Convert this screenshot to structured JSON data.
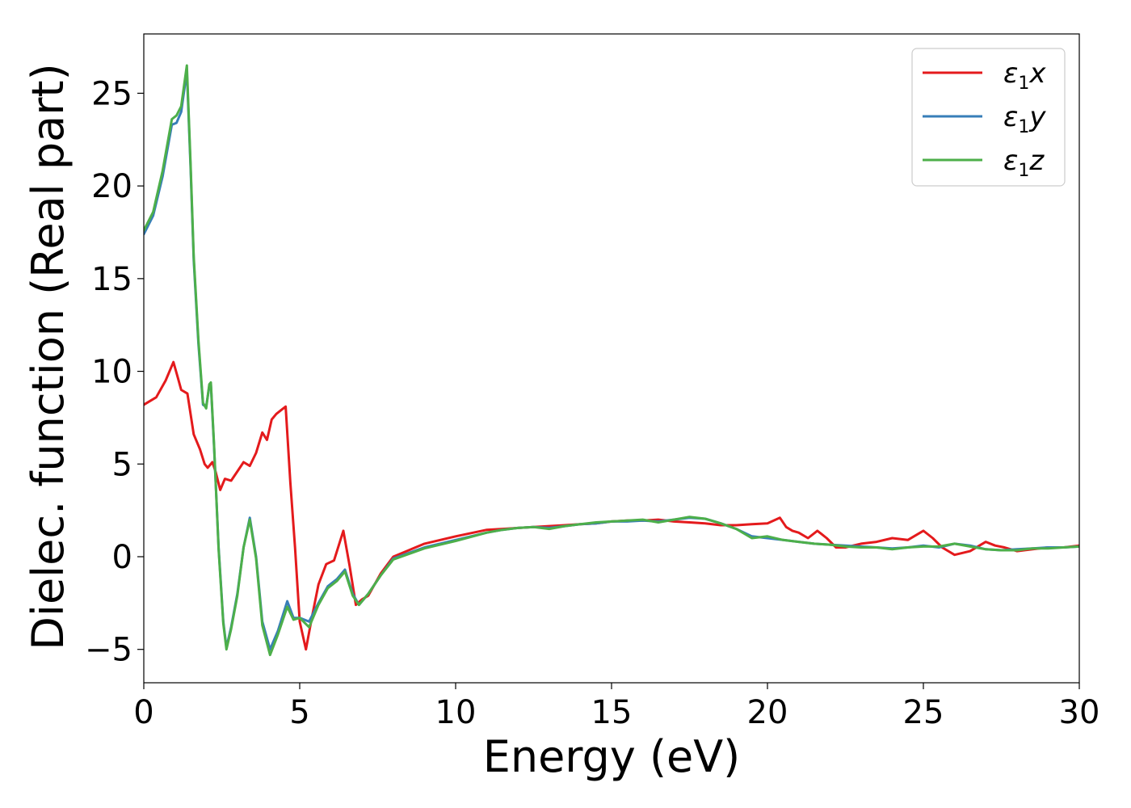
{
  "chart_data": {
    "type": "line",
    "xlabel": "Energy (eV)",
    "ylabel": "Dielec. function (Real part)",
    "xlim": [
      0,
      30
    ],
    "ylim": [
      -6.8,
      28.2
    ],
    "xticks": [
      0,
      5,
      10,
      15,
      20,
      25,
      30
    ],
    "yticks": [
      -5,
      0,
      5,
      10,
      15,
      20,
      25
    ],
    "xtick_labels": [
      "0",
      "5",
      "10",
      "15",
      "20",
      "25",
      "30"
    ],
    "ytick_labels": [
      "−5",
      "0",
      "5",
      "10",
      "15",
      "20",
      "25"
    ],
    "grid": false,
    "legend_position": "top-right",
    "series": [
      {
        "name": "ε1x",
        "symbol": "ε",
        "sub": "1",
        "axis": "x",
        "color": "#e41a1c",
        "x": [
          0,
          0.4,
          0.7,
          0.95,
          1.1,
          1.2,
          1.4,
          1.6,
          1.8,
          1.95,
          2.05,
          2.2,
          2.3,
          2.45,
          2.6,
          2.8,
          3.0,
          3.2,
          3.4,
          3.6,
          3.8,
          3.95,
          4.1,
          4.25,
          4.4,
          4.55,
          4.7,
          4.85,
          5.0,
          5.2,
          5.4,
          5.6,
          5.85,
          6.1,
          6.4,
          6.6,
          6.8,
          7.0,
          7.2,
          7.6,
          8.0,
          9.0,
          10.0,
          11.0,
          11.5,
          12.0,
          12.5,
          13.0,
          13.5,
          14.0,
          14.5,
          15.0,
          15.5,
          16.0,
          16.5,
          17.0,
          17.5,
          18.0,
          18.5,
          19.0,
          19.5,
          20.0,
          20.4,
          20.6,
          20.8,
          21.0,
          21.3,
          21.6,
          21.9,
          22.2,
          22.5,
          23.0,
          23.5,
          24.0,
          24.5,
          25.0,
          25.3,
          25.6,
          26.0,
          26.5,
          27.0,
          27.3,
          27.6,
          28.0,
          28.5,
          29.0,
          29.5,
          30.0
        ],
        "y": [
          8.2,
          8.6,
          9.5,
          10.5,
          9.6,
          9.0,
          8.8,
          6.6,
          5.8,
          5.0,
          4.8,
          5.1,
          4.6,
          3.6,
          4.2,
          4.1,
          4.6,
          5.1,
          4.9,
          5.6,
          6.7,
          6.3,
          7.4,
          7.7,
          7.9,
          8.1,
          4.0,
          0.5,
          -3.5,
          -5.0,
          -3.2,
          -1.5,
          -0.4,
          -0.2,
          1.4,
          -0.5,
          -2.6,
          -2.3,
          -2.1,
          -0.9,
          0.0,
          0.7,
          1.1,
          1.45,
          1.5,
          1.55,
          1.6,
          1.65,
          1.7,
          1.75,
          1.8,
          1.9,
          1.95,
          1.95,
          2.0,
          1.9,
          1.85,
          1.8,
          1.7,
          1.7,
          1.75,
          1.8,
          2.1,
          1.6,
          1.4,
          1.3,
          1.0,
          1.4,
          1.0,
          0.5,
          0.5,
          0.7,
          0.8,
          1.0,
          0.9,
          1.4,
          1.0,
          0.5,
          0.1,
          0.3,
          0.8,
          0.6,
          0.5,
          0.3,
          0.4,
          0.5,
          0.5,
          0.6
        ]
      },
      {
        "name": "ε1y",
        "symbol": "ε",
        "sub": "1",
        "axis": "y",
        "color": "#377eb8",
        "x": [
          0,
          0.3,
          0.6,
          0.9,
          1.05,
          1.2,
          1.38,
          1.5,
          1.6,
          1.75,
          1.9,
          2.0,
          2.1,
          2.15,
          2.25,
          2.4,
          2.55,
          2.65,
          2.8,
          3.0,
          3.2,
          3.4,
          3.6,
          3.8,
          4.05,
          4.3,
          4.6,
          4.8,
          5.0,
          5.3,
          5.6,
          5.9,
          6.2,
          6.45,
          6.7,
          6.9,
          7.2,
          7.6,
          8.0,
          9.0,
          10.0,
          11.0,
          11.5,
          12.0,
          12.5,
          13.0,
          13.5,
          14.0,
          14.5,
          15.0,
          15.5,
          16.0,
          16.5,
          17.0,
          17.5,
          18.0,
          18.5,
          19.0,
          19.5,
          20.0,
          20.5,
          21.0,
          21.5,
          22.0,
          22.5,
          23.0,
          23.5,
          24.0,
          24.5,
          25.0,
          25.5,
          26.0,
          26.5,
          27.0,
          27.5,
          28.0,
          28.5,
          29.0,
          29.5,
          30.0
        ],
        "y": [
          17.4,
          18.4,
          20.5,
          23.3,
          23.4,
          24.0,
          26.2,
          21.0,
          16.0,
          11.5,
          8.2,
          8.1,
          9.2,
          9.3,
          6.0,
          0.5,
          -3.5,
          -4.9,
          -3.8,
          -2.0,
          0.5,
          2.1,
          0.0,
          -3.5,
          -5.0,
          -4.0,
          -2.4,
          -3.3,
          -3.3,
          -3.5,
          -2.5,
          -1.6,
          -1.2,
          -0.7,
          -2.0,
          -2.6,
          -2.0,
          -1.0,
          -0.1,
          0.5,
          0.9,
          1.3,
          1.45,
          1.55,
          1.6,
          1.55,
          1.65,
          1.75,
          1.8,
          1.9,
          1.9,
          1.95,
          1.9,
          2.0,
          2.1,
          2.05,
          1.8,
          1.5,
          1.1,
          1.0,
          0.9,
          0.8,
          0.7,
          0.65,
          0.6,
          0.55,
          0.5,
          0.45,
          0.5,
          0.6,
          0.5,
          0.7,
          0.6,
          0.4,
          0.35,
          0.4,
          0.45,
          0.5,
          0.5,
          0.55
        ]
      },
      {
        "name": "ε1z",
        "symbol": "ε",
        "sub": "1",
        "axis": "z",
        "color": "#4daf4a",
        "x": [
          0,
          0.3,
          0.6,
          0.9,
          1.05,
          1.2,
          1.38,
          1.5,
          1.6,
          1.75,
          1.9,
          2.0,
          2.1,
          2.15,
          2.25,
          2.4,
          2.55,
          2.65,
          2.8,
          3.0,
          3.2,
          3.4,
          3.6,
          3.8,
          4.05,
          4.3,
          4.6,
          4.8,
          5.0,
          5.3,
          5.6,
          5.9,
          6.2,
          6.45,
          6.7,
          6.9,
          7.2,
          7.6,
          8.0,
          9.0,
          10.0,
          11.0,
          11.5,
          12.0,
          12.5,
          13.0,
          13.5,
          14.0,
          14.5,
          15.0,
          15.5,
          16.0,
          16.5,
          17.0,
          17.5,
          18.0,
          18.5,
          19.0,
          19.5,
          20.0,
          20.5,
          21.0,
          21.5,
          22.0,
          22.5,
          23.0,
          23.5,
          24.0,
          24.5,
          25.0,
          25.5,
          26.0,
          26.5,
          27.0,
          27.5,
          28.0,
          28.5,
          29.0,
          29.5,
          30.0
        ],
        "y": [
          17.6,
          18.6,
          20.8,
          23.6,
          23.8,
          24.3,
          26.5,
          21.2,
          16.2,
          11.7,
          8.3,
          8.0,
          9.3,
          9.4,
          6.1,
          0.4,
          -3.6,
          -5.0,
          -3.9,
          -2.1,
          0.5,
          2.0,
          -0.1,
          -3.7,
          -5.3,
          -4.2,
          -2.7,
          -3.4,
          -3.3,
          -3.8,
          -2.6,
          -1.7,
          -1.3,
          -0.8,
          -2.1,
          -2.6,
          -2.0,
          -1.0,
          -0.15,
          0.45,
          0.85,
          1.3,
          1.45,
          1.55,
          1.6,
          1.5,
          1.65,
          1.75,
          1.85,
          1.9,
          1.95,
          2.0,
          1.85,
          2.0,
          2.15,
          2.05,
          1.8,
          1.5,
          1.0,
          1.1,
          0.9,
          0.8,
          0.7,
          0.65,
          0.55,
          0.5,
          0.5,
          0.4,
          0.5,
          0.55,
          0.55,
          0.7,
          0.55,
          0.4,
          0.35,
          0.35,
          0.45,
          0.45,
          0.5,
          0.55
        ]
      }
    ]
  }
}
